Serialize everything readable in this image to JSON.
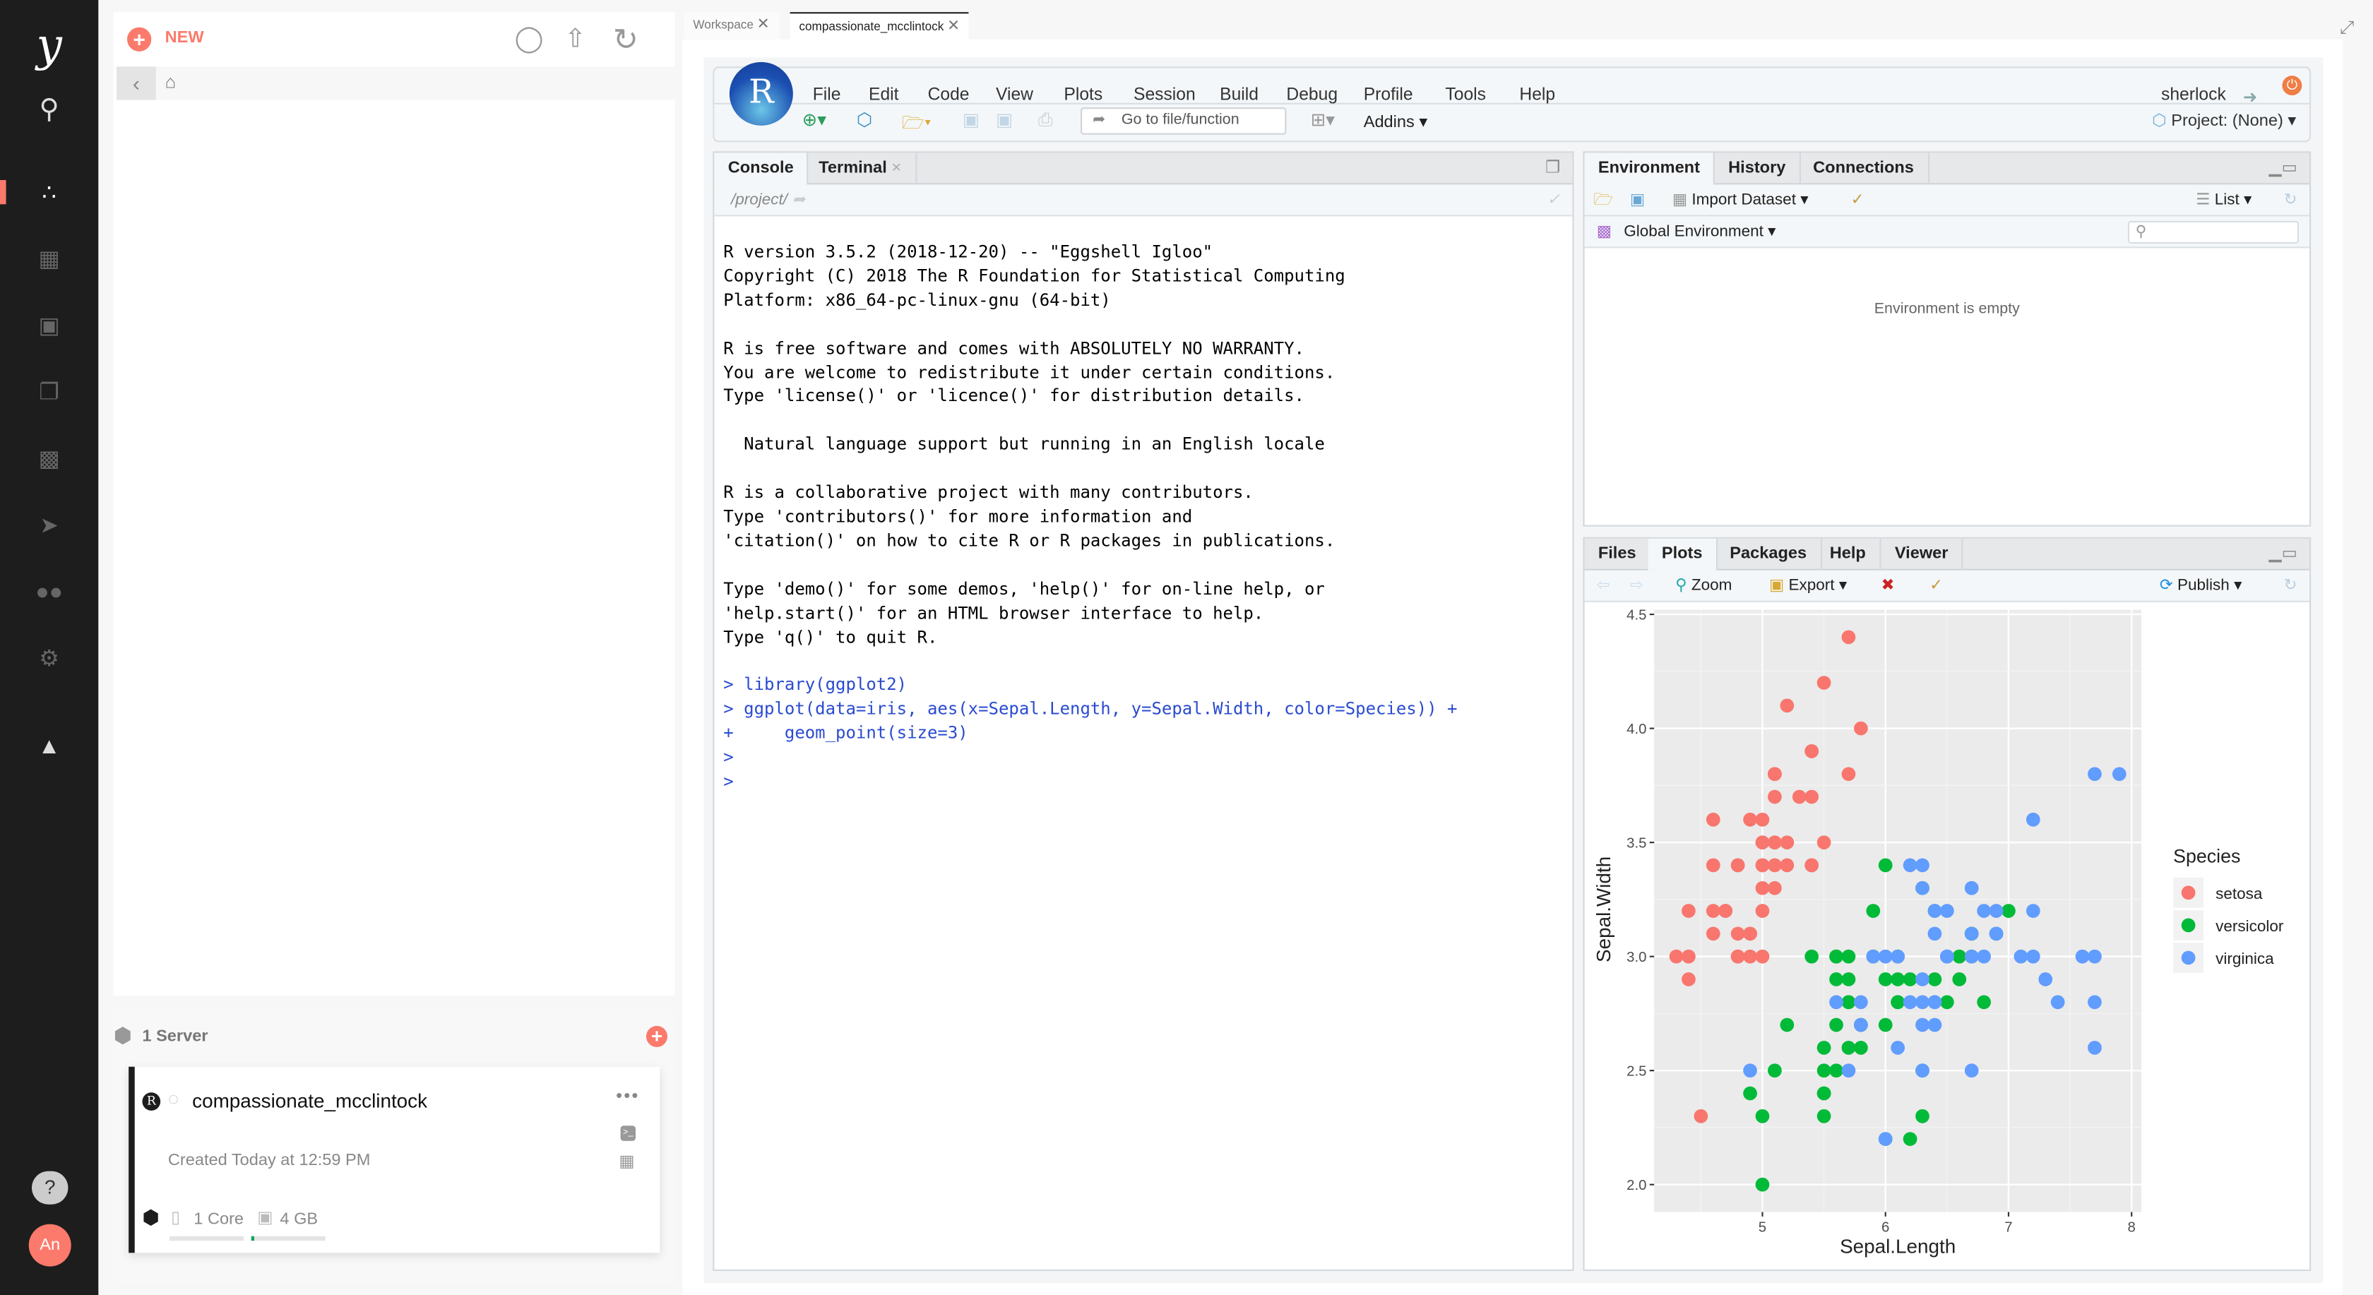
{
  "sidebar": {
    "logo": "y",
    "items": [
      "search-icon",
      "nodes-icon",
      "apps-icon",
      "briefcase-icon",
      "stack-icon",
      "reports-icon",
      "rocket-icon",
      "users-icon",
      "settings-icon",
      "graduation-icon"
    ],
    "help": "?",
    "avatar": "An",
    "accent": "#fb7a6b"
  },
  "files_panel": {
    "new_label": "NEW"
  },
  "servers": {
    "title": "1 Server",
    "card": {
      "name": "compassionate_mcclintock",
      "created": "Created Today at 12:59 PM",
      "cores": "1 Core",
      "memory": "4 GB",
      "memory_usage_fraction": 0.05
    }
  },
  "tabs": [
    {
      "label": "Workspace"
    },
    {
      "label": "compassionate_mcclintock"
    }
  ],
  "rstudio": {
    "menu": [
      "File",
      "Edit",
      "Code",
      "View",
      "Plots",
      "Session",
      "Build",
      "Debug",
      "Profile",
      "Tools",
      "Help"
    ],
    "user": "sherlock",
    "goto_placeholder": "Go to file/function",
    "addins": "Addins",
    "project": "Project: (None)",
    "console": {
      "tabs": [
        "Console",
        "Terminal"
      ],
      "path": "/project/",
      "lines": [
        {
          "t": "out",
          "s": "R version 3.5.2 (2018-12-20) -- \"Eggshell Igloo\""
        },
        {
          "t": "out",
          "s": "Copyright (C) 2018 The R Foundation for Statistical Computing"
        },
        {
          "t": "out",
          "s": "Platform: x86_64-pc-linux-gnu (64-bit)"
        },
        {
          "t": "out",
          "s": ""
        },
        {
          "t": "out",
          "s": "R is free software and comes with ABSOLUTELY NO WARRANTY."
        },
        {
          "t": "out",
          "s": "You are welcome to redistribute it under certain conditions."
        },
        {
          "t": "out",
          "s": "Type 'license()' or 'licence()' for distribution details."
        },
        {
          "t": "out",
          "s": ""
        },
        {
          "t": "out",
          "s": "  Natural language support but running in an English locale"
        },
        {
          "t": "out",
          "s": ""
        },
        {
          "t": "out",
          "s": "R is a collaborative project with many contributors."
        },
        {
          "t": "out",
          "s": "Type 'contributors()' for more information and"
        },
        {
          "t": "out",
          "s": "'citation()' on how to cite R or R packages in publications."
        },
        {
          "t": "out",
          "s": ""
        },
        {
          "t": "out",
          "s": "Type 'demo()' for some demos, 'help()' for on-line help, or"
        },
        {
          "t": "out",
          "s": "'help.start()' for an HTML browser interface to help."
        },
        {
          "t": "out",
          "s": "Type 'q()' to quit R."
        },
        {
          "t": "out",
          "s": ""
        },
        {
          "t": "in",
          "s": "> library(ggplot2)"
        },
        {
          "t": "in",
          "s": "> ggplot(data=iris, aes(x=Sepal.Length, y=Sepal.Width, color=Species)) +"
        },
        {
          "t": "in",
          "s": "+     geom_point(size=3)"
        },
        {
          "t": "in",
          "s": ">"
        },
        {
          "t": "in",
          "s": ">"
        }
      ]
    },
    "environment": {
      "tabs": [
        "Environment",
        "History",
        "Connections"
      ],
      "import": "Import Dataset",
      "list": "List",
      "scope": "Global Environment",
      "empty": "Environment is empty"
    },
    "files": {
      "tabs": [
        "Files",
        "Plots",
        "Packages",
        "Help",
        "Viewer"
      ],
      "zoom": "Zoom",
      "export": "Export",
      "publish": "Publish"
    }
  },
  "chart_data": {
    "type": "scatter",
    "xlabel": "Sepal.Length",
    "ylabel": "Sepal.Width",
    "xlim": [
      4.12,
      8.08
    ],
    "ylim": [
      1.88,
      4.52
    ],
    "xticks": [
      "5",
      "6",
      "7",
      "8"
    ],
    "yticks": [
      "2.0",
      "2.5",
      "3.0",
      "3.5",
      "4.0",
      "4.5"
    ],
    "grid": true,
    "legend_title": "Species",
    "legend_position": "right",
    "series": [
      {
        "name": "setosa",
        "color": "#F8766D",
        "x": [
          5.1,
          4.9,
          4.7,
          4.6,
          5.0,
          5.4,
          4.6,
          5.0,
          4.4,
          4.9,
          5.4,
          4.8,
          4.8,
          4.3,
          5.8,
          5.7,
          5.4,
          5.1,
          5.7,
          5.1,
          5.4,
          5.1,
          4.6,
          5.1,
          4.8,
          5.0,
          5.0,
          5.2,
          5.2,
          4.7,
          4.8,
          5.4,
          5.2,
          5.5,
          4.9,
          5.0,
          5.5,
          4.9,
          4.4,
          5.1,
          5.0,
          4.5,
          4.4,
          5.0,
          5.1,
          4.8,
          5.1,
          4.6,
          5.3,
          5.0
        ],
        "y": [
          3.5,
          3.0,
          3.2,
          3.1,
          3.6,
          3.9,
          3.4,
          3.4,
          2.9,
          3.1,
          3.7,
          3.4,
          3.0,
          3.0,
          4.0,
          4.4,
          3.9,
          3.5,
          3.8,
          3.8,
          3.4,
          3.7,
          3.6,
          3.3,
          3.4,
          3.0,
          3.4,
          3.5,
          3.4,
          3.2,
          3.1,
          3.4,
          4.1,
          4.2,
          3.1,
          3.2,
          3.5,
          3.6,
          3.0,
          3.4,
          3.5,
          2.3,
          3.2,
          3.5,
          3.8,
          3.0,
          3.8,
          3.2,
          3.7,
          3.3
        ]
      },
      {
        "name": "versicolor",
        "color": "#00BA38",
        "x": [
          7.0,
          6.4,
          6.9,
          5.5,
          6.5,
          5.7,
          6.3,
          4.9,
          6.6,
          5.2,
          5.0,
          5.9,
          6.0,
          6.1,
          5.6,
          6.7,
          5.6,
          5.8,
          6.2,
          5.6,
          5.9,
          6.1,
          6.3,
          6.1,
          6.4,
          6.6,
          6.8,
          6.7,
          6.0,
          5.7,
          5.5,
          5.5,
          5.8,
          6.0,
          5.4,
          6.0,
          6.7,
          6.3,
          5.6,
          5.5,
          5.5,
          6.1,
          5.8,
          5.0,
          5.6,
          5.7,
          5.7,
          6.2,
          5.1,
          5.7
        ],
        "y": [
          3.2,
          3.2,
          3.1,
          2.3,
          2.8,
          2.8,
          3.3,
          2.4,
          2.9,
          2.7,
          2.0,
          3.0,
          2.2,
          2.9,
          2.9,
          3.1,
          3.0,
          2.7,
          2.2,
          2.5,
          3.2,
          2.8,
          2.5,
          2.8,
          2.9,
          3.0,
          2.8,
          3.0,
          2.9,
          2.6,
          2.4,
          2.4,
          2.7,
          2.7,
          3.0,
          3.4,
          3.1,
          2.3,
          3.0,
          2.5,
          2.6,
          3.0,
          2.6,
          2.3,
          2.7,
          3.0,
          2.9,
          2.9,
          2.5,
          2.8
        ]
      },
      {
        "name": "virginica",
        "color": "#619CFF",
        "x": [
          6.3,
          5.8,
          7.1,
          6.3,
          6.5,
          7.6,
          4.9,
          7.3,
          6.7,
          7.2,
          6.5,
          6.4,
          6.8,
          5.7,
          5.8,
          6.4,
          6.5,
          7.7,
          7.7,
          6.0,
          6.9,
          5.6,
          7.7,
          6.3,
          6.7,
          7.2,
          6.2,
          6.1,
          6.4,
          7.2,
          7.4,
          7.9,
          6.4,
          6.3,
          6.1,
          7.7,
          6.3,
          6.4,
          6.0,
          6.9,
          6.7,
          6.9,
          5.8,
          6.8,
          6.7,
          6.7,
          6.3,
          6.5,
          6.2,
          5.9
        ],
        "y": [
          3.3,
          2.7,
          3.0,
          2.9,
          3.0,
          3.0,
          2.5,
          2.9,
          2.5,
          3.6,
          3.2,
          2.7,
          3.0,
          2.5,
          2.8,
          3.2,
          3.0,
          3.8,
          2.6,
          2.2,
          3.2,
          2.8,
          2.8,
          2.7,
          3.3,
          3.2,
          2.8,
          3.0,
          2.8,
          3.0,
          2.8,
          3.8,
          2.8,
          2.8,
          2.6,
          3.0,
          3.4,
          3.1,
          3.0,
          3.1,
          3.1,
          3.1,
          2.7,
          3.2,
          3.3,
          3.0,
          2.5,
          3.0,
          3.4,
          3.0
        ]
      }
    ]
  }
}
